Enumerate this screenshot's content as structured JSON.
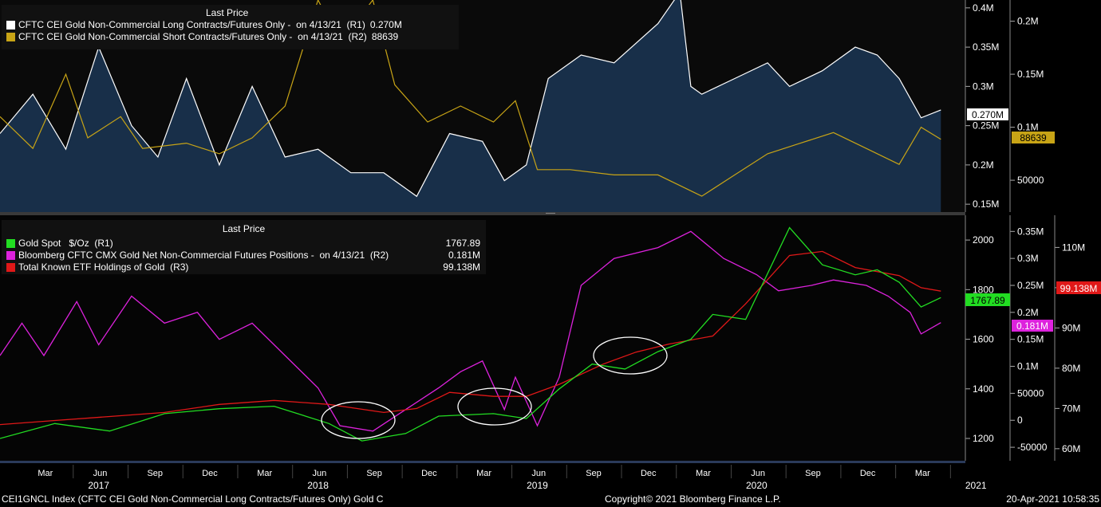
{
  "colors": {
    "long": "#ffffff",
    "short": "#c8a416",
    "area": "#1a3350",
    "gold": "#22dd22",
    "net": "#dd22dd",
    "etf": "#e01818",
    "bg": "#000000"
  },
  "top_panel": {
    "legend_title": "Last Price",
    "series": [
      {
        "label": "CFTC CEI Gold Non-Commercial Long Contracts/Futures Only -  on 4/13/21  (R1)",
        "value": "0.270M"
      },
      {
        "label": "CFTC CEI Gold Non-Commercial Short Contracts/Futures Only -  on 4/13/21  (R2)",
        "value": "88639"
      }
    ],
    "badges": {
      "long": "0.270M",
      "short": "88639"
    }
  },
  "bottom_panel": {
    "legend_title": "Last Price",
    "series": [
      {
        "label": "Gold Spot   $/Oz  (R1)",
        "value": "1767.89"
      },
      {
        "label": "Bloomberg CFTC CMX Gold Net Non-Commercial Futures Positions -  on 4/13/21  (R2)",
        "value": "0.181M"
      },
      {
        "label": "Total Known ETF Holdings of Gold  (R3)",
        "value": "99.138M"
      }
    ],
    "badges": {
      "gold": "1767.89",
      "net": "0.181M",
      "etf": "99.138M"
    }
  },
  "footer": {
    "left": "CEI1GNCL Index (CFTC CEI Gold Non-Commercial Long Contracts/Futures Only) Gold C",
    "center": "Copyright© 2021 Bloomberg Finance L.P.",
    "right": "20-Apr-2021 10:58:35"
  },
  "chart_data": [
    {
      "type": "area",
      "x_axis": {
        "months": [
          "Mar",
          "Jun",
          "Sep",
          "Dec",
          "Mar",
          "Jun",
          "Sep",
          "Dec",
          "Mar",
          "Jun",
          "Sep",
          "Dec",
          "Mar",
          "Jun",
          "Sep",
          "Dec",
          "Mar"
        ],
        "years": [
          "2017",
          "2018",
          "2019",
          "2020",
          "2021"
        ],
        "range": [
          "2017-02",
          "2021-04"
        ]
      },
      "axes": {
        "R1": {
          "ticks": [
            "0.4M",
            "0.35M",
            "0.3M",
            "0.25M",
            "0.2M",
            "0.15M"
          ],
          "range": [
            0.14,
            0.41
          ]
        },
        "R2": {
          "ticks": [
            "0.2M",
            "0.15M",
            "0.1M",
            "50000"
          ],
          "range": [
            0.02,
            0.22
          ]
        }
      },
      "series": [
        {
          "name": "CFTC CEI Gold Non-Commercial Long Contracts/Futures Only",
          "axis": "R1",
          "style": "area",
          "x": [
            2017.0,
            2017.15,
            2017.3,
            2017.45,
            2017.6,
            2017.72,
            2017.85,
            2018.0,
            2018.15,
            2018.3,
            2018.45,
            2018.6,
            2018.75,
            2018.9,
            2019.05,
            2019.2,
            2019.3,
            2019.4,
            2019.5,
            2019.65,
            2019.8,
            2020.0,
            2020.1,
            2020.15,
            2020.2,
            2020.35,
            2020.5,
            2020.6,
            2020.75,
            2020.9,
            2021.0,
            2021.1,
            2021.2,
            2021.29
          ],
          "values": [
            0.24,
            0.29,
            0.22,
            0.35,
            0.25,
            0.21,
            0.31,
            0.2,
            0.3,
            0.21,
            0.22,
            0.19,
            0.19,
            0.16,
            0.24,
            0.23,
            0.18,
            0.2,
            0.31,
            0.34,
            0.33,
            0.38,
            0.42,
            0.3,
            0.29,
            0.31,
            0.33,
            0.3,
            0.32,
            0.35,
            0.34,
            0.31,
            0.26,
            0.27
          ]
        },
        {
          "name": "CFTC CEI Gold Non-Commercial Short Contracts/Futures Only",
          "axis": "R2",
          "style": "line",
          "x": [
            2017.0,
            2017.15,
            2017.3,
            2017.4,
            2017.55,
            2017.65,
            2017.85,
            2018.0,
            2018.15,
            2018.3,
            2018.45,
            2018.55,
            2018.7,
            2018.8,
            2018.95,
            2019.1,
            2019.25,
            2019.35,
            2019.45,
            2019.6,
            2019.8,
            2020.0,
            2020.2,
            2020.35,
            2020.5,
            2020.65,
            2020.8,
            2020.95,
            2021.1,
            2021.2,
            2021.29
          ],
          "values": [
            110000,
            80000,
            150000,
            90000,
            110000,
            80000,
            85000,
            75000,
            90000,
            120000,
            220000,
            180000,
            220000,
            140000,
            105000,
            120000,
            105000,
            125000,
            60000,
            60000,
            55000,
            55000,
            35000,
            55000,
            75000,
            85000,
            95000,
            80000,
            65000,
            100000,
            88639
          ]
        }
      ]
    },
    {
      "type": "line",
      "x_axis": {
        "months": [
          "Mar",
          "Jun",
          "Sep",
          "Dec",
          "Mar",
          "Jun",
          "Sep",
          "Dec",
          "Mar",
          "Jun",
          "Sep",
          "Dec",
          "Mar",
          "Jun",
          "Sep",
          "Dec",
          "Mar"
        ],
        "years": [
          "2017",
          "2018",
          "2019",
          "2020",
          "2021"
        ],
        "range": [
          "2017-02",
          "2021-04"
        ]
      },
      "axes": {
        "R1": {
          "ticks": [
            "2000",
            "1800",
            "1600",
            "1400",
            "1200"
          ],
          "range": [
            1110,
            2100
          ]
        },
        "R2": {
          "ticks": [
            "0.35M",
            "0.3M",
            "0.25M",
            "0.2M",
            "0.15M",
            "0.1M",
            "50000",
            "0",
            "-50000"
          ],
          "range": [
            -75000,
            380000.0
          ]
        },
        "R3": {
          "ticks": [
            "110M",
            "100M",
            "90M",
            "80M",
            "70M",
            "60M"
          ],
          "range": [
            57,
            118
          ]
        }
      },
      "series": [
        {
          "name": "Gold Spot $/Oz",
          "axis": "R1",
          "x": [
            2017.0,
            2017.25,
            2017.5,
            2017.75,
            2018.0,
            2018.25,
            2018.5,
            2018.65,
            2018.85,
            2019.0,
            2019.25,
            2019.4,
            2019.55,
            2019.7,
            2019.85,
            2020.0,
            2020.15,
            2020.25,
            2020.4,
            2020.6,
            2020.75,
            2020.9,
            2021.0,
            2021.1,
            2021.2,
            2021.29
          ],
          "values": [
            1200,
            1260,
            1230,
            1300,
            1320,
            1330,
            1260,
            1190,
            1220,
            1290,
            1300,
            1280,
            1400,
            1500,
            1480,
            1550,
            1600,
            1700,
            1680,
            2050,
            1900,
            1860,
            1880,
            1830,
            1730,
            1767.89
          ]
        },
        {
          "name": "Bloomberg CFTC CMX Gold Net Non-Commercial Futures Positions",
          "axis": "R2",
          "x": [
            2017.0,
            2017.1,
            2017.2,
            2017.35,
            2017.45,
            2017.6,
            2017.75,
            2017.9,
            2018.0,
            2018.15,
            2018.3,
            2018.45,
            2018.55,
            2018.7,
            2018.85,
            2019.0,
            2019.1,
            2019.2,
            2019.3,
            2019.35,
            2019.45,
            2019.55,
            2019.65,
            2019.8,
            2020.0,
            2020.15,
            2020.3,
            2020.45,
            2020.55,
            2020.7,
            2020.8,
            2020.95,
            2021.05,
            2021.15,
            2021.2,
            2021.29
          ],
          "values": [
            120000,
            180000,
            120000,
            220000,
            140000,
            230000,
            180000,
            200000,
            150000,
            180000,
            120000,
            60000,
            -10000,
            -20000,
            20000,
            60000,
            90000,
            110000,
            20000,
            80000,
            -10000,
            80000,
            250000,
            300000,
            320000,
            350000,
            300000,
            270000,
            240000,
            250000,
            260000,
            250000,
            230000,
            200000,
            160000,
            181000
          ]
        },
        {
          "name": "Total Known ETF Holdings of Gold",
          "axis": "R3",
          "x": [
            2017.0,
            2017.25,
            2017.5,
            2017.75,
            2018.0,
            2018.25,
            2018.5,
            2018.75,
            2018.9,
            2019.05,
            2019.25,
            2019.4,
            2019.55,
            2019.75,
            2019.9,
            2020.05,
            2020.25,
            2020.4,
            2020.6,
            2020.75,
            2020.9,
            2021.0,
            2021.1,
            2021.2,
            2021.29
          ],
          "values": [
            66,
            67,
            68,
            69,
            71,
            72,
            71,
            69,
            70,
            74,
            73,
            73,
            76,
            81,
            84,
            86,
            88,
            96,
            108,
            109,
            105,
            104,
            103,
            100,
            99.138
          ]
        }
      ]
    }
  ]
}
